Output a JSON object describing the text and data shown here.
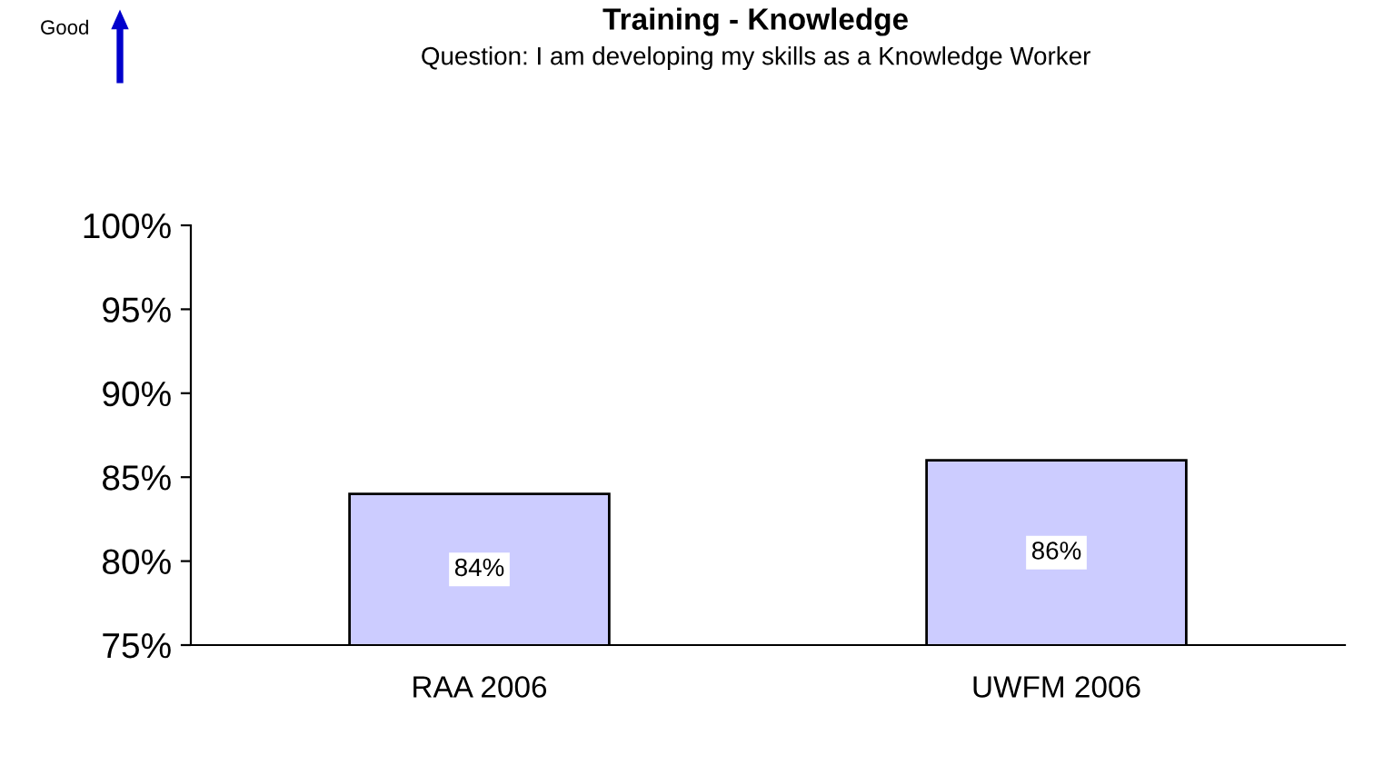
{
  "chart_data": {
    "type": "bar",
    "title": "Training - Knowledge",
    "subtitle": "Question: I am developing my skills as a Knowledge Worker",
    "annotations": [
      "Good"
    ],
    "categories": [
      "RAA 2006",
      "UWFM 2006"
    ],
    "values": [
      84,
      86
    ],
    "value_labels": [
      "84%",
      "86%"
    ],
    "color": "#ccccff",
    "ylim": [
      75,
      100
    ],
    "yticks": [
      {
        "value": 75,
        "label": "75%"
      },
      {
        "value": 80,
        "label": "80%"
      },
      {
        "value": 85,
        "label": "85%"
      },
      {
        "value": 90,
        "label": "90%"
      },
      {
        "value": 95,
        "label": "95%"
      },
      {
        "value": 100,
        "label": "100%"
      }
    ],
    "grid": false,
    "legend": false
  }
}
